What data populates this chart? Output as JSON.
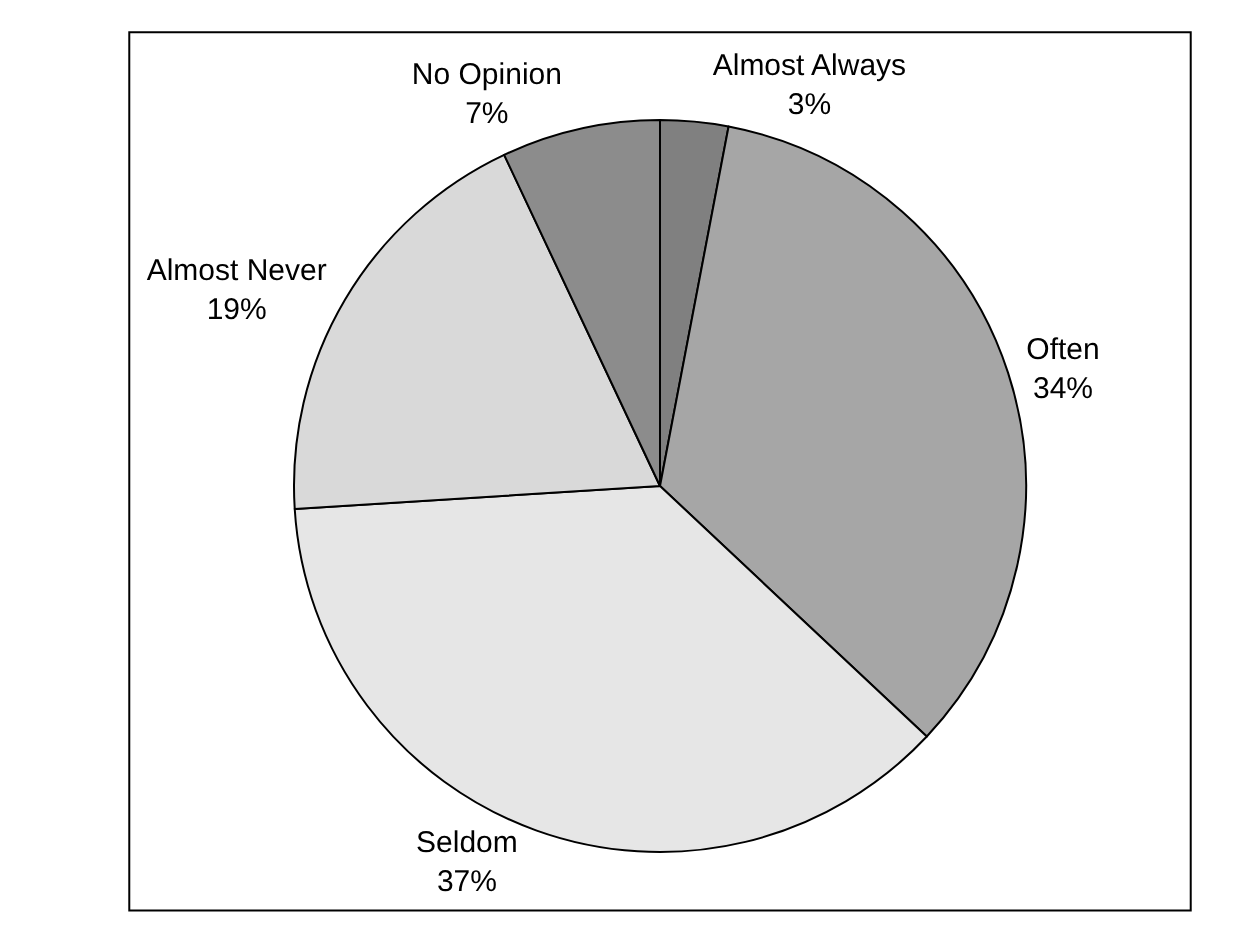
{
  "chart_data": {
    "type": "pie",
    "categories": [
      "Almost Always",
      "Often",
      "Seldom",
      "Almost Never",
      "No Opinion"
    ],
    "values": [
      3,
      34,
      37,
      19,
      7
    ],
    "value_labels": [
      "3%",
      "34%",
      "37%",
      "19%",
      "7%"
    ],
    "colors": [
      "#808080",
      "#a6a6a6",
      "#e6e6e6",
      "#d9d9d9",
      "#8c8c8c"
    ],
    "legend": false
  }
}
